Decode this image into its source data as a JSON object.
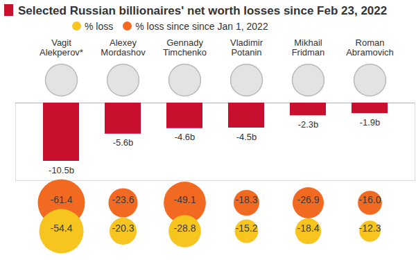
{
  "chart_data": [
    {
      "type": "bar",
      "title": "Selected Russian billionaires' net worth losses since Feb 23, 2022",
      "categories": [
        "Vagit Alekperov*",
        "Alexey Mordashov",
        "Gennady Timchenko",
        "Vladimir Potanin",
        "Mikhail Fridman",
        "Roman Abramovich"
      ],
      "values": [
        -10.5,
        -5.6,
        -4.6,
        -4.5,
        -2.3,
        -1.9
      ],
      "value_labels": [
        "-10.5b",
        "-5.6b",
        "-4.6b",
        "-4.5b",
        "-2.3b",
        "-1.9b"
      ],
      "color": "#c8102e",
      "ylim": [
        -14,
        0
      ],
      "yticks": [
        0
      ],
      "data_labels": true,
      "tick_labels": "x"
    },
    {
      "type": "bubble",
      "categories": [
        "Vagit Alekperov*",
        "Alexey Mordashov",
        "Gennady Timchenko",
        "Vladimir Potanin",
        "Mikhail Fridman",
        "Roman Abramovich"
      ],
      "series": [
        {
          "name": "% loss",
          "color": "#f7c51e",
          "values": [
            -54.4,
            -20.3,
            -28.8,
            -15.2,
            -18.4,
            -12.3
          ]
        },
        {
          "name": "% loss since since Jan 1, 2022",
          "color": "#f26a21",
          "values": [
            -61.4,
            -23.6,
            -49.1,
            -18.3,
            -26.9,
            -16.0
          ],
          "value_labels": [
            "-61.4",
            "-23.6",
            "-49.1",
            "-18.3",
            "-26.9",
            "-16.0"
          ]
        }
      ],
      "legend": "top",
      "data_labels": true,
      "tick_labels": false
    }
  ]
}
